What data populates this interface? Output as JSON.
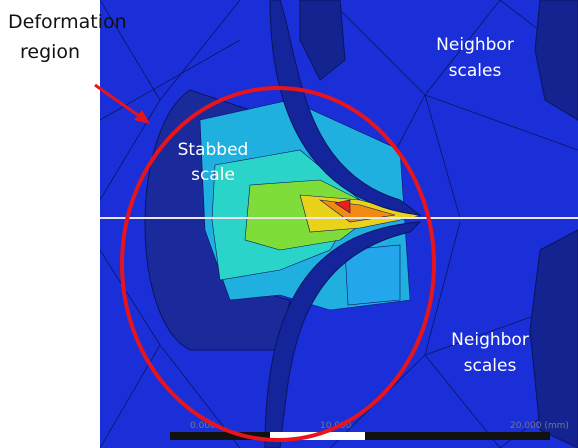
{
  "annotations": {
    "deformation_region": [
      "Deformation",
      "region"
    ],
    "stabbed_scale": [
      "Stabbed",
      "scale"
    ],
    "neighbor_scales_top": [
      "Neighbor",
      "scales"
    ],
    "neighbor_scales_bottom": [
      "Neighbor",
      "scales"
    ]
  },
  "scale_bar": {
    "labels": [
      "0.000",
      "10.000",
      "20.000 (mm)"
    ]
  }
}
